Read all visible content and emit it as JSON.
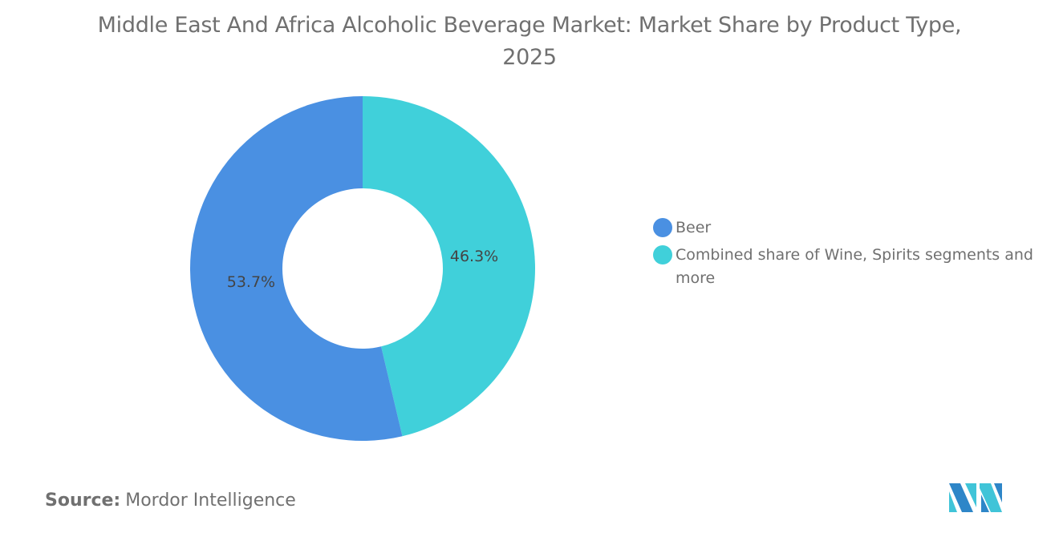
{
  "title": "Middle East And Africa Alcoholic Beverage Market: Market Share by Product Type, 2025",
  "source_label": "Source:",
  "source_value": "Mordor Intelligence",
  "logo_text": "Mordor Intelligence",
  "chart_data": {
    "type": "pie",
    "subtype": "donut",
    "title": "Middle East And Africa Alcoholic Beverage Market: Market Share by Product Type, 2025",
    "legend_position": "right",
    "slices": [
      {
        "name": "Combined share of Wine, Spirits segments and more",
        "value": 46.3,
        "label": "46.3%",
        "color": "#40D0DA"
      },
      {
        "name": "Beer",
        "value": 53.7,
        "label": "53.7%",
        "color": "#4A90E2"
      }
    ],
    "legend": [
      {
        "name": "Beer",
        "color": "#4A90E2"
      },
      {
        "name": "Combined share of Wine, Spirits segments and more",
        "color": "#40D0DA"
      }
    ]
  }
}
